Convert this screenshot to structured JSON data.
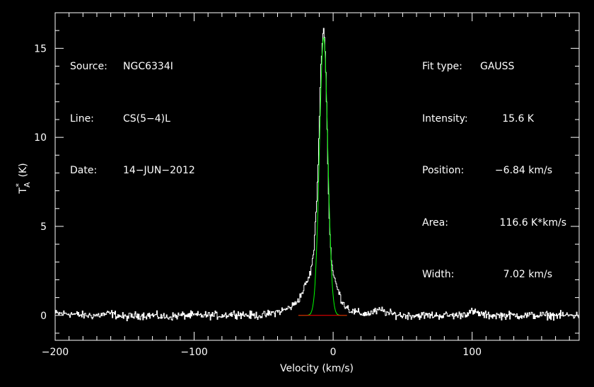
{
  "header_left": {
    "source_label": "Source:",
    "source_value": "NGC6334I",
    "line_label": "Line:",
    "line_value": "CS(5−4)L",
    "date_label": "Date:",
    "date_value": "14−JUN−2012"
  },
  "header_right": {
    "fit_type_label": "Fit type:",
    "fit_type_value": "GAUSS",
    "intensity_label": "Intensity:",
    "intensity_value": "15.6 K",
    "position_label": "Position:",
    "position_value": "−6.84 km/s",
    "area_label": "Area:",
    "area_value": "116.6 K*km/s",
    "width_label": "Width:",
    "width_value": "7.02 km/s"
  },
  "colors": {
    "background": "#000000",
    "data": "#ffffff",
    "fit": "#00ff00",
    "baseline": "#ff0000",
    "axes": "#ffffff"
  },
  "chart_data": {
    "type": "line",
    "title": "",
    "xlabel": "Velocity (km/s)",
    "ylabel": "T_A^* (K)",
    "xlim": [
      -200,
      177
    ],
    "ylim": [
      -1.4,
      17.0
    ],
    "xticks": [
      {
        "value": -200,
        "label": "−200"
      },
      {
        "value": -100,
        "label": "−100"
      },
      {
        "value": 0,
        "label": "0"
      },
      {
        "value": 100,
        "label": "100"
      }
    ],
    "yticks": [
      {
        "value": 0,
        "label": "0"
      },
      {
        "value": 5,
        "label": "5"
      },
      {
        "value": 10,
        "label": "10"
      },
      {
        "value": 15,
        "label": "15"
      }
    ],
    "grid": false,
    "series": [
      {
        "role": "spectrum",
        "style": "histogram",
        "x": [
          -200,
          -190,
          -180,
          -170,
          -160,
          -150,
          -140,
          -130,
          -120,
          -110,
          -100,
          -90,
          -80,
          -70,
          -60,
          -50,
          -40,
          -35,
          -30,
          -28,
          -26,
          -24,
          -22,
          -20,
          -18,
          -16,
          -14,
          -12,
          -11,
          -10,
          -9,
          -8,
          -7,
          -6.84,
          -6,
          -5,
          -4,
          -3,
          -2,
          -1,
          0,
          2,
          4,
          6,
          8,
          10,
          12,
          15,
          20,
          25,
          30,
          35,
          40,
          50,
          60,
          70,
          80,
          90,
          100,
          110,
          120,
          130,
          140,
          150,
          160,
          170,
          177
        ],
        "y": [
          0.1,
          0.1,
          0.0,
          0.0,
          0.1,
          -0.1,
          0.0,
          0.0,
          -0.1,
          0.0,
          0.0,
          0.0,
          0.0,
          0.1,
          0.0,
          0.0,
          0.2,
          0.3,
          0.5,
          0.6,
          0.8,
          1.0,
          1.3,
          1.7,
          2.0,
          2.5,
          3.5,
          6.0,
          8.0,
          10.5,
          13.5,
          15.3,
          16.0,
          16.2,
          15.4,
          13.0,
          9.5,
          6.0,
          4.0,
          3.0,
          2.3,
          1.8,
          1.3,
          0.9,
          0.6,
          0.5,
          0.3,
          0.2,
          0.1,
          0.1,
          0.2,
          0.3,
          0.1,
          0.0,
          0.0,
          0.0,
          0.0,
          0.0,
          0.2,
          0.0,
          0.0,
          0.0,
          0.0,
          0.0,
          0.0,
          0.0,
          0.0
        ]
      },
      {
        "role": "gaussian_fit",
        "amplitude": 15.6,
        "center": -6.84,
        "fwhm": 7.02
      },
      {
        "role": "baseline",
        "x": [
          -25,
          10
        ],
        "y": [
          0,
          0
        ]
      }
    ]
  }
}
